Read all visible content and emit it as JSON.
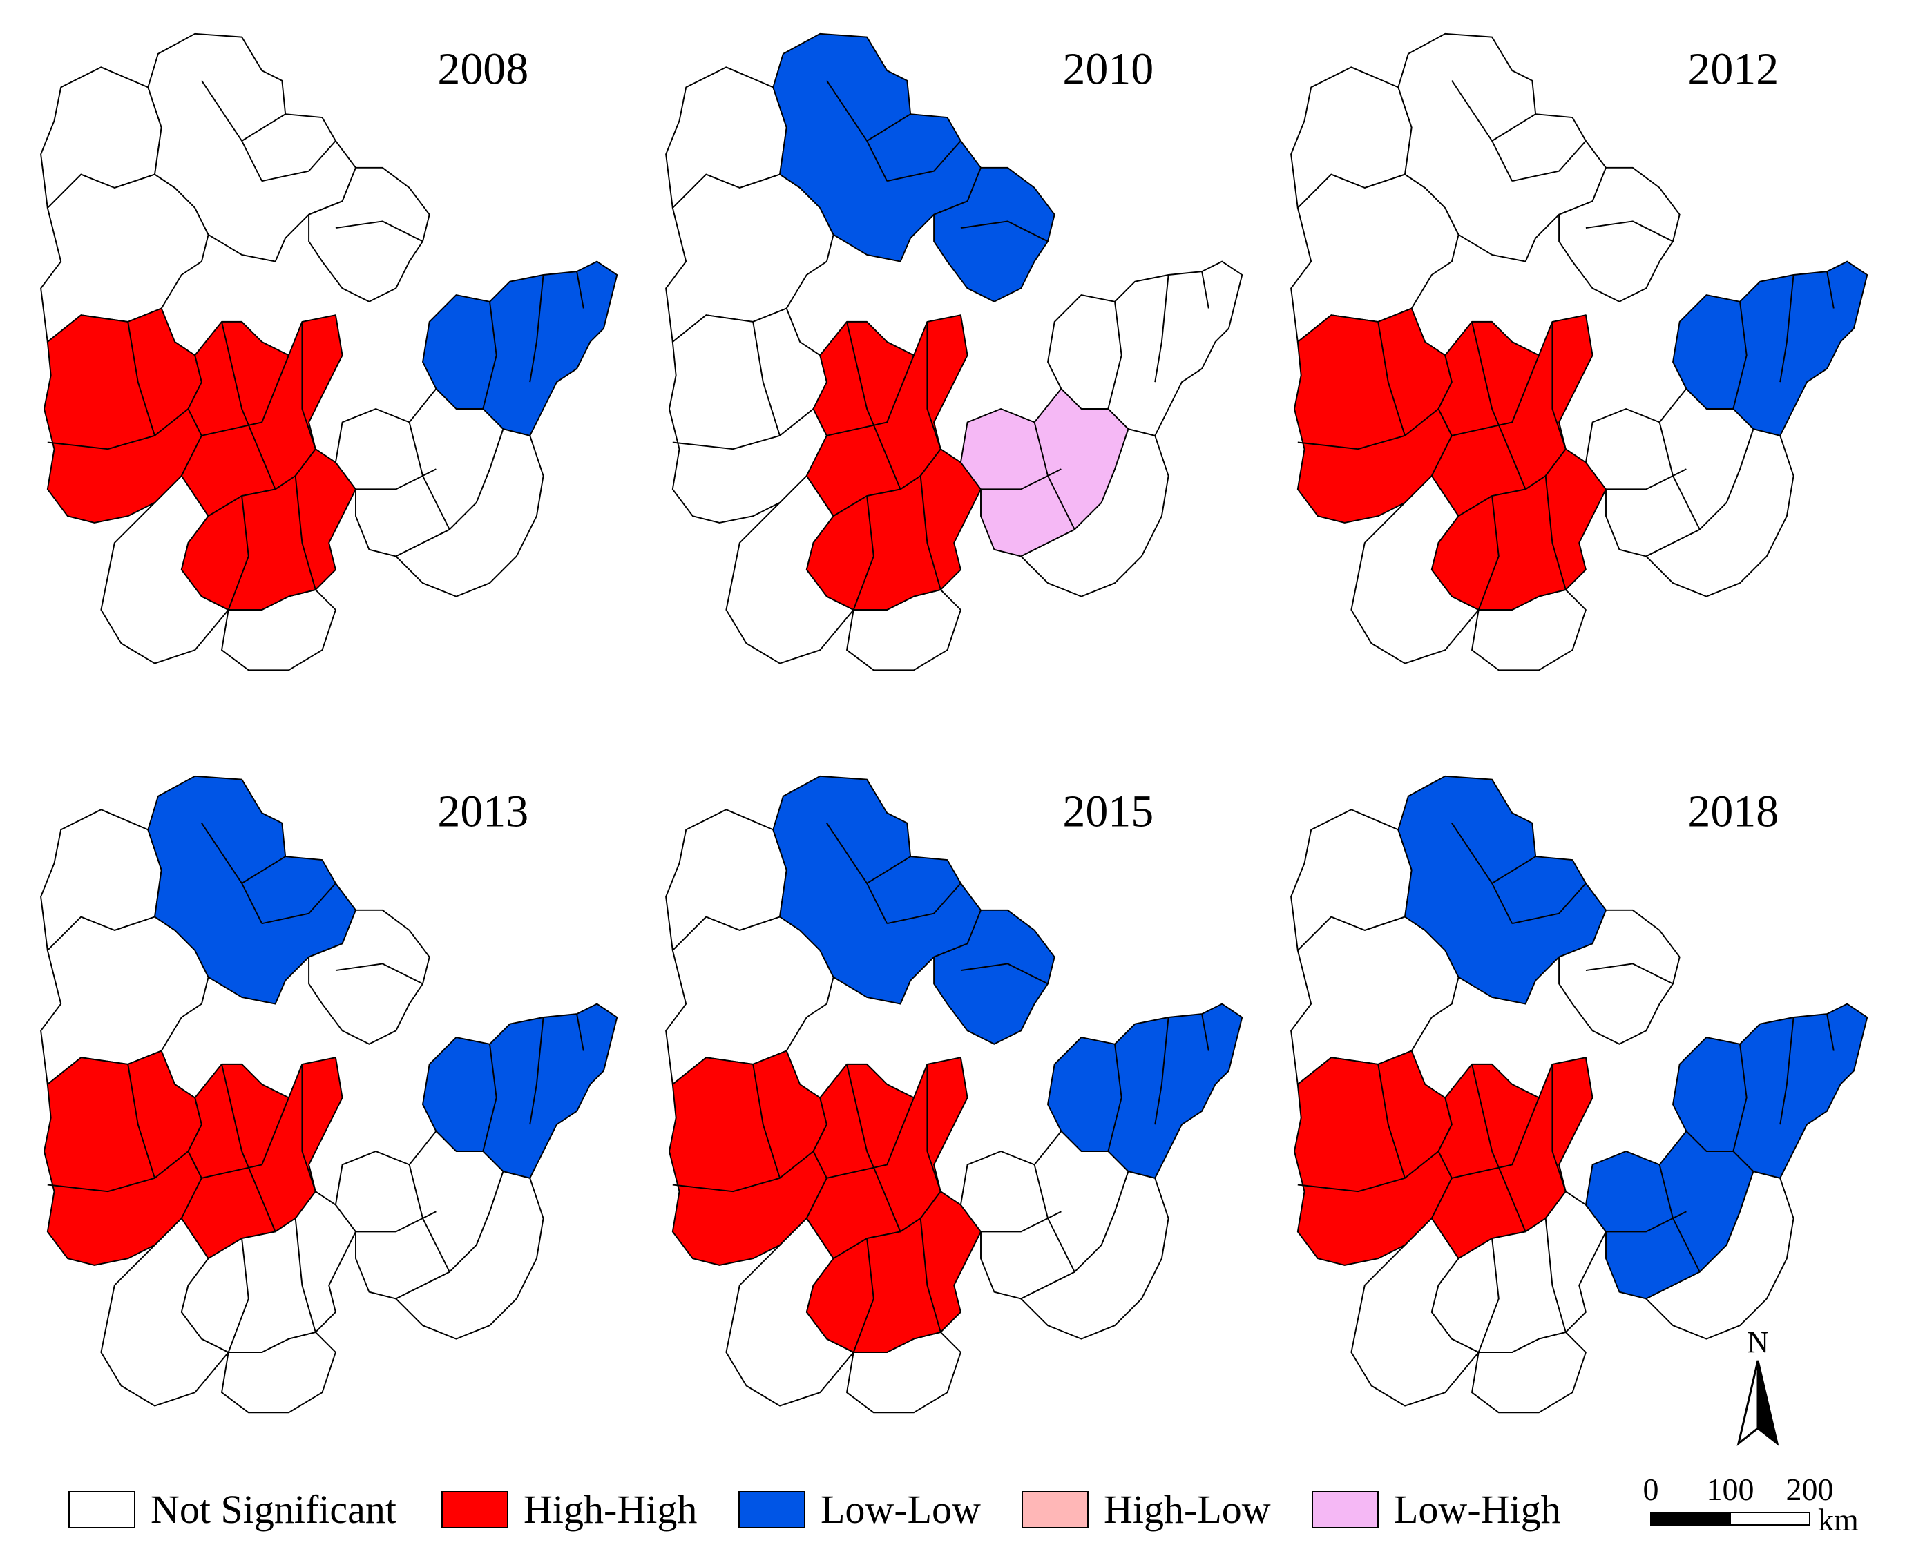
{
  "legend": {
    "items": [
      {
        "label": "Not Significant",
        "color": "#ffffff"
      },
      {
        "label": "High-High",
        "color": "#ff0000"
      },
      {
        "label": "Low-Low",
        "color": "#0055e6"
      },
      {
        "label": "High-Low",
        "color": "#ffb7b7"
      },
      {
        "label": "Low-High",
        "color": "#f5b8f5"
      }
    ]
  },
  "panels": [
    {
      "year": "2008",
      "regions": {
        "north": "ns",
        "northeast": "ns",
        "west": "hh",
        "center": "hh",
        "east": "ll",
        "south": "hh",
        "southeast": "ns"
      }
    },
    {
      "year": "2010",
      "regions": {
        "north": "ll",
        "northeast": "ll",
        "west": "ns",
        "center": "hh",
        "east": "ns",
        "south": "hh",
        "southeast": "lh"
      }
    },
    {
      "year": "2012",
      "regions": {
        "north": "ns",
        "northeast": "ns",
        "west": "hh",
        "center": "hh",
        "east": "ll",
        "south": "hh",
        "southeast": "ns"
      }
    },
    {
      "year": "2013",
      "regions": {
        "north": "ll",
        "northeast": "ns",
        "west": "hh",
        "center": "hh",
        "east": "ll",
        "south": "ns",
        "southeast": "ns"
      }
    },
    {
      "year": "2015",
      "regions": {
        "north": "ll",
        "northeast": "ll",
        "west": "hh",
        "center": "hh",
        "east": "ll",
        "south": "hh",
        "southeast": "ns"
      }
    },
    {
      "year": "2018",
      "regions": {
        "north": "ll",
        "northeast": "ns",
        "west": "hh",
        "center": "hh",
        "east": "ll",
        "south": "ns",
        "southeast": "ll"
      }
    }
  ],
  "north_arrow": {
    "label": "N"
  },
  "scale_bar": {
    "ticks": [
      "0",
      "100",
      "200"
    ],
    "unit": "km"
  }
}
